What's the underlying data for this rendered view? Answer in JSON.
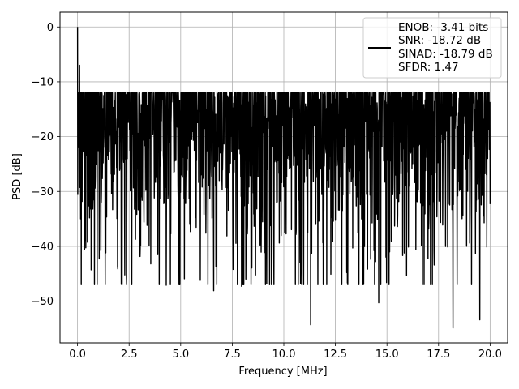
{
  "chart_data": {
    "type": "line",
    "title": "",
    "xlabel": "Frequency [MHz]",
    "ylabel": "PSD [dB]",
    "xlim": [
      -0.85,
      20.85
    ],
    "ylim": [
      -57.6,
      2.7
    ],
    "xticks": [
      0.0,
      2.5,
      5.0,
      7.5,
      10.0,
      12.5,
      15.0,
      17.5,
      20.0
    ],
    "xtick_labels": [
      "0.0",
      "2.5",
      "5.0",
      "7.5",
      "10.0",
      "12.5",
      "15.0",
      "17.5",
      "20.0"
    ],
    "yticks": [
      0,
      -10,
      -20,
      -30,
      -40,
      -50
    ],
    "ytick_labels": [
      "0",
      "−10",
      "−20",
      "−30",
      "−40",
      "−50"
    ],
    "grid": true,
    "legend_position": "top-right",
    "legend": [
      "ENOB: -3.41 bits",
      "SNR: -18.72 dB",
      "SINAD: -18.79 dB",
      "SFDR: 1.47"
    ],
    "series": [
      {
        "color": "#000000",
        "x_range": [
          0.0,
          20.0
        ],
        "num_points": 2001,
        "noise_mean_db": -21,
        "noise_upper_db": -12,
        "notable_points": [
          {
            "x": 0.0,
            "y": 0.0
          },
          {
            "x": 0.05,
            "y": -22.0
          },
          {
            "x": 0.1,
            "y": -7.0
          },
          {
            "x": 0.15,
            "y": -35.0
          },
          {
            "x": 1.05,
            "y": -42.3
          },
          {
            "x": 1.95,
            "y": -44.1
          },
          {
            "x": 3.55,
            "y": -43.2
          },
          {
            "x": 4.3,
            "y": -47.1
          },
          {
            "x": 5.95,
            "y": -46.2
          },
          {
            "x": 6.6,
            "y": -48.1
          },
          {
            "x": 7.95,
            "y": -47.3
          },
          {
            "x": 11.3,
            "y": -54.3
          },
          {
            "x": 14.6,
            "y": -50.3
          },
          {
            "x": 15.95,
            "y": -45.3
          },
          {
            "x": 18.2,
            "y": -54.9
          },
          {
            "x": 19.5,
            "y": -53.4
          }
        ]
      }
    ]
  }
}
